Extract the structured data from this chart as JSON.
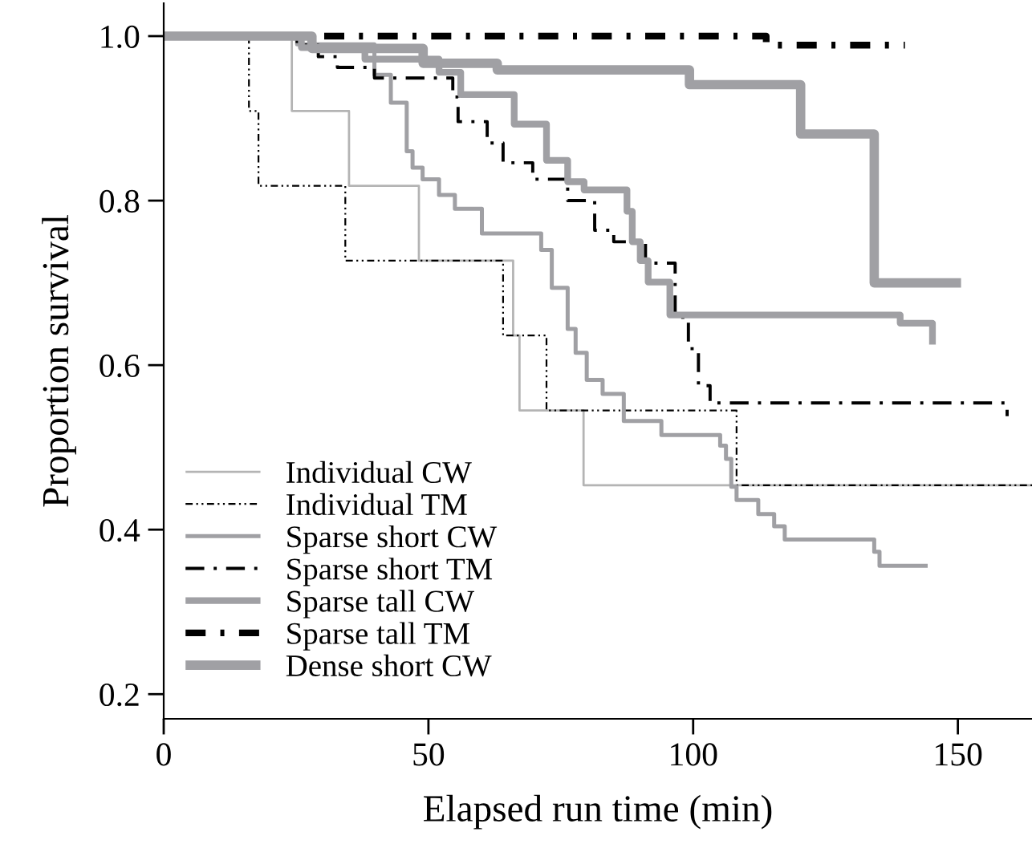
{
  "chart_data": {
    "type": "step",
    "xlabel": "Elapsed run time (min)",
    "ylabel": "Proportion survival",
    "xlim": [
      0,
      164
    ],
    "ylim": [
      0.17,
      1.04
    ],
    "xticks": [
      0,
      50,
      100,
      150
    ],
    "yticks": [
      0.2,
      0.4,
      0.6,
      0.8,
      {
        "value": 1,
        "label": "1.0"
      }
    ],
    "grid": false,
    "legend": "bottom left",
    "marker": "none",
    "series": [
      {
        "name": "Individual CW",
        "color": "#b4b4b4",
        "line_style": "solid",
        "x": [
          0,
          24.2,
          35.0,
          48.2,
          66.0,
          67.2,
          79.3,
          164
        ],
        "values": [
          1,
          0.909,
          0.818,
          0.727,
          0.636,
          0.545,
          0.454,
          0.454
        ]
      },
      {
        "name": "Individual TM",
        "color": "#000000",
        "line_style": "dashdotdot",
        "x": [
          0,
          16.1,
          17.9,
          34.3,
          64.1,
          72.3,
          108.2,
          164
        ],
        "values": [
          1,
          0.909,
          0.818,
          0.727,
          0.636,
          0.545,
          0.454,
          0.454
        ]
      },
      {
        "name": "Sparse short CW",
        "color": "#a0a0a4",
        "line_style": "solid",
        "x": [
          0,
          25.2,
          39.8,
          42.9,
          45.9,
          47.0,
          48.9,
          52.0,
          55.0,
          60.1,
          71.3,
          73.3,
          76.3,
          77.8,
          79.9,
          82.9,
          86.9,
          94.0,
          105.1,
          106.2,
          107.2,
          108.2,
          112.3,
          115.3,
          117.3,
          134.2,
          135.2,
          144.3
        ],
        "values": [
          1,
          0.99,
          0.953,
          0.919,
          0.86,
          0.84,
          0.826,
          0.807,
          0.79,
          0.76,
          0.74,
          0.694,
          0.644,
          0.615,
          0.582,
          0.565,
          0.532,
          0.515,
          0.502,
          0.486,
          0.452,
          0.436,
          0.419,
          0.404,
          0.388,
          0.373,
          0.356,
          0.356
        ]
      },
      {
        "name": "Sparse short TM",
        "color": "#000000",
        "line_style": "dashdot",
        "x": [
          0,
          25.2,
          29.2,
          32.8,
          39.8,
          54.6,
          55.6,
          61.1,
          64.1,
          69.7,
          76.3,
          81.4,
          85.0,
          91.0,
          96.6,
          99.1,
          101.0,
          103.2,
          159.3
        ],
        "values": [
          1,
          0.989,
          0.975,
          0.962,
          0.949,
          0.926,
          0.896,
          0.87,
          0.846,
          0.826,
          0.8,
          0.764,
          0.75,
          0.724,
          0.658,
          0.62,
          0.575,
          0.554,
          0.538
        ]
      },
      {
        "name": "Sparse tall CW",
        "color": "#a0a0a4",
        "line_style": "solid",
        "x": [
          0,
          26.0,
          38.0,
          52.0,
          56.1,
          66.2,
          72.3,
          76.3,
          79.4,
          87.5,
          88.5,
          90.0,
          91.5,
          95.6,
          139.1,
          145.2
        ],
        "values": [
          1,
          0.986,
          0.972,
          0.956,
          0.929,
          0.893,
          0.849,
          0.823,
          0.813,
          0.787,
          0.75,
          0.727,
          0.701,
          0.661,
          0.651,
          0.625
        ]
      },
      {
        "name": "Sparse tall TM",
        "color": "#000000",
        "line_style": "dashdot",
        "x": [
          0,
          113.8,
          140.0
        ],
        "values": [
          1,
          0.989,
          0.989
        ]
      },
      {
        "name": "Dense short CW",
        "color": "#a0a0a4",
        "line_style": "solid",
        "x": [
          0,
          28.0,
          49.0,
          63.0,
          99.3,
          120.3,
          134.2,
          150.6
        ],
        "values": [
          1,
          0.985,
          0.967,
          0.959,
          0.941,
          0.881,
          0.7,
          0.7
        ]
      }
    ]
  }
}
